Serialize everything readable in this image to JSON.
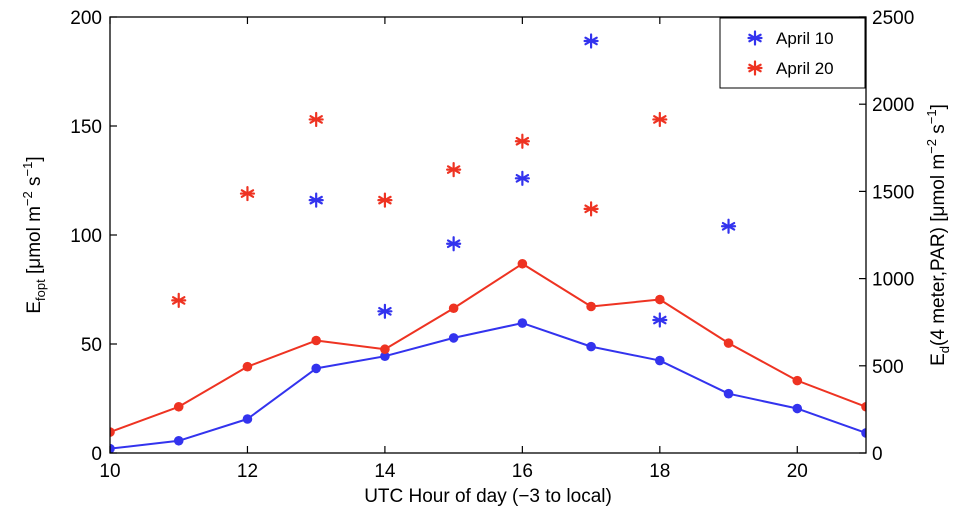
{
  "chart_data": {
    "type": "scatter",
    "x_label": "UTC Hour of day (−3 to local)",
    "y_left_label": {
      "base": "E",
      "sub": "fopt",
      "rest": " [μmol m",
      "sup1": "−2",
      "mid": " s",
      "sup2": "−1",
      "end": "]"
    },
    "y_right_label": {
      "base": "E",
      "sub": "d",
      "rest": "(4 meter,PAR) [μmol m",
      "sup1": "−2",
      "mid": " s",
      "sup2": "−1",
      "end": "]"
    },
    "xlim": [
      10,
      21
    ],
    "ylim_left": [
      0,
      200
    ],
    "ylim_right": [
      0,
      2500
    ],
    "x_ticks": [
      10,
      12,
      14,
      16,
      18,
      20
    ],
    "y_left_ticks": [
      0,
      50,
      100,
      150,
      200
    ],
    "y_right_ticks": [
      0,
      500,
      1000,
      1500,
      2000,
      2500
    ],
    "legend": {
      "position": "top-right",
      "entries": [
        {
          "label": "April 10",
          "color": "#3333ee"
        },
        {
          "label": "April 20",
          "color": "#ee3322"
        }
      ]
    },
    "series": [
      {
        "name": "April 10",
        "type": "scatter",
        "marker": "asterisk",
        "axis": "left",
        "color": "#3333ee",
        "points": [
          [
            13,
            116
          ],
          [
            14,
            65
          ],
          [
            15,
            96
          ],
          [
            16,
            126
          ],
          [
            17,
            189
          ],
          [
            18,
            61
          ],
          [
            19,
            104
          ]
        ]
      },
      {
        "name": "April 20",
        "type": "scatter",
        "marker": "asterisk",
        "axis": "left",
        "color": "#ee3322",
        "points": [
          [
            11,
            70
          ],
          [
            12,
            119
          ],
          [
            13,
            153
          ],
          [
            14,
            116
          ],
          [
            15,
            130
          ],
          [
            16,
            143
          ],
          [
            17,
            112
          ],
          [
            18,
            153
          ]
        ]
      },
      {
        "name": "April 10",
        "type": "line",
        "marker": "dot",
        "axis": "right",
        "color": "#3333ee",
        "points": [
          [
            10,
            25
          ],
          [
            11,
            70
          ],
          [
            12,
            195
          ],
          [
            13,
            485
          ],
          [
            14,
            555
          ],
          [
            15,
            660
          ],
          [
            16,
            745
          ],
          [
            17,
            610
          ],
          [
            18,
            530
          ],
          [
            19,
            340
          ],
          [
            20,
            255
          ],
          [
            21,
            115
          ]
        ]
      },
      {
        "name": "April 20",
        "type": "line",
        "marker": "dot",
        "axis": "right",
        "color": "#ee3322",
        "points": [
          [
            10,
            120
          ],
          [
            11,
            265
          ],
          [
            12,
            495
          ],
          [
            13,
            645
          ],
          [
            14,
            595
          ],
          [
            15,
            830
          ],
          [
            16,
            1085
          ],
          [
            17,
            840
          ],
          [
            18,
            880
          ],
          [
            19,
            630
          ],
          [
            20,
            415
          ],
          [
            21,
            265
          ]
        ]
      }
    ]
  }
}
